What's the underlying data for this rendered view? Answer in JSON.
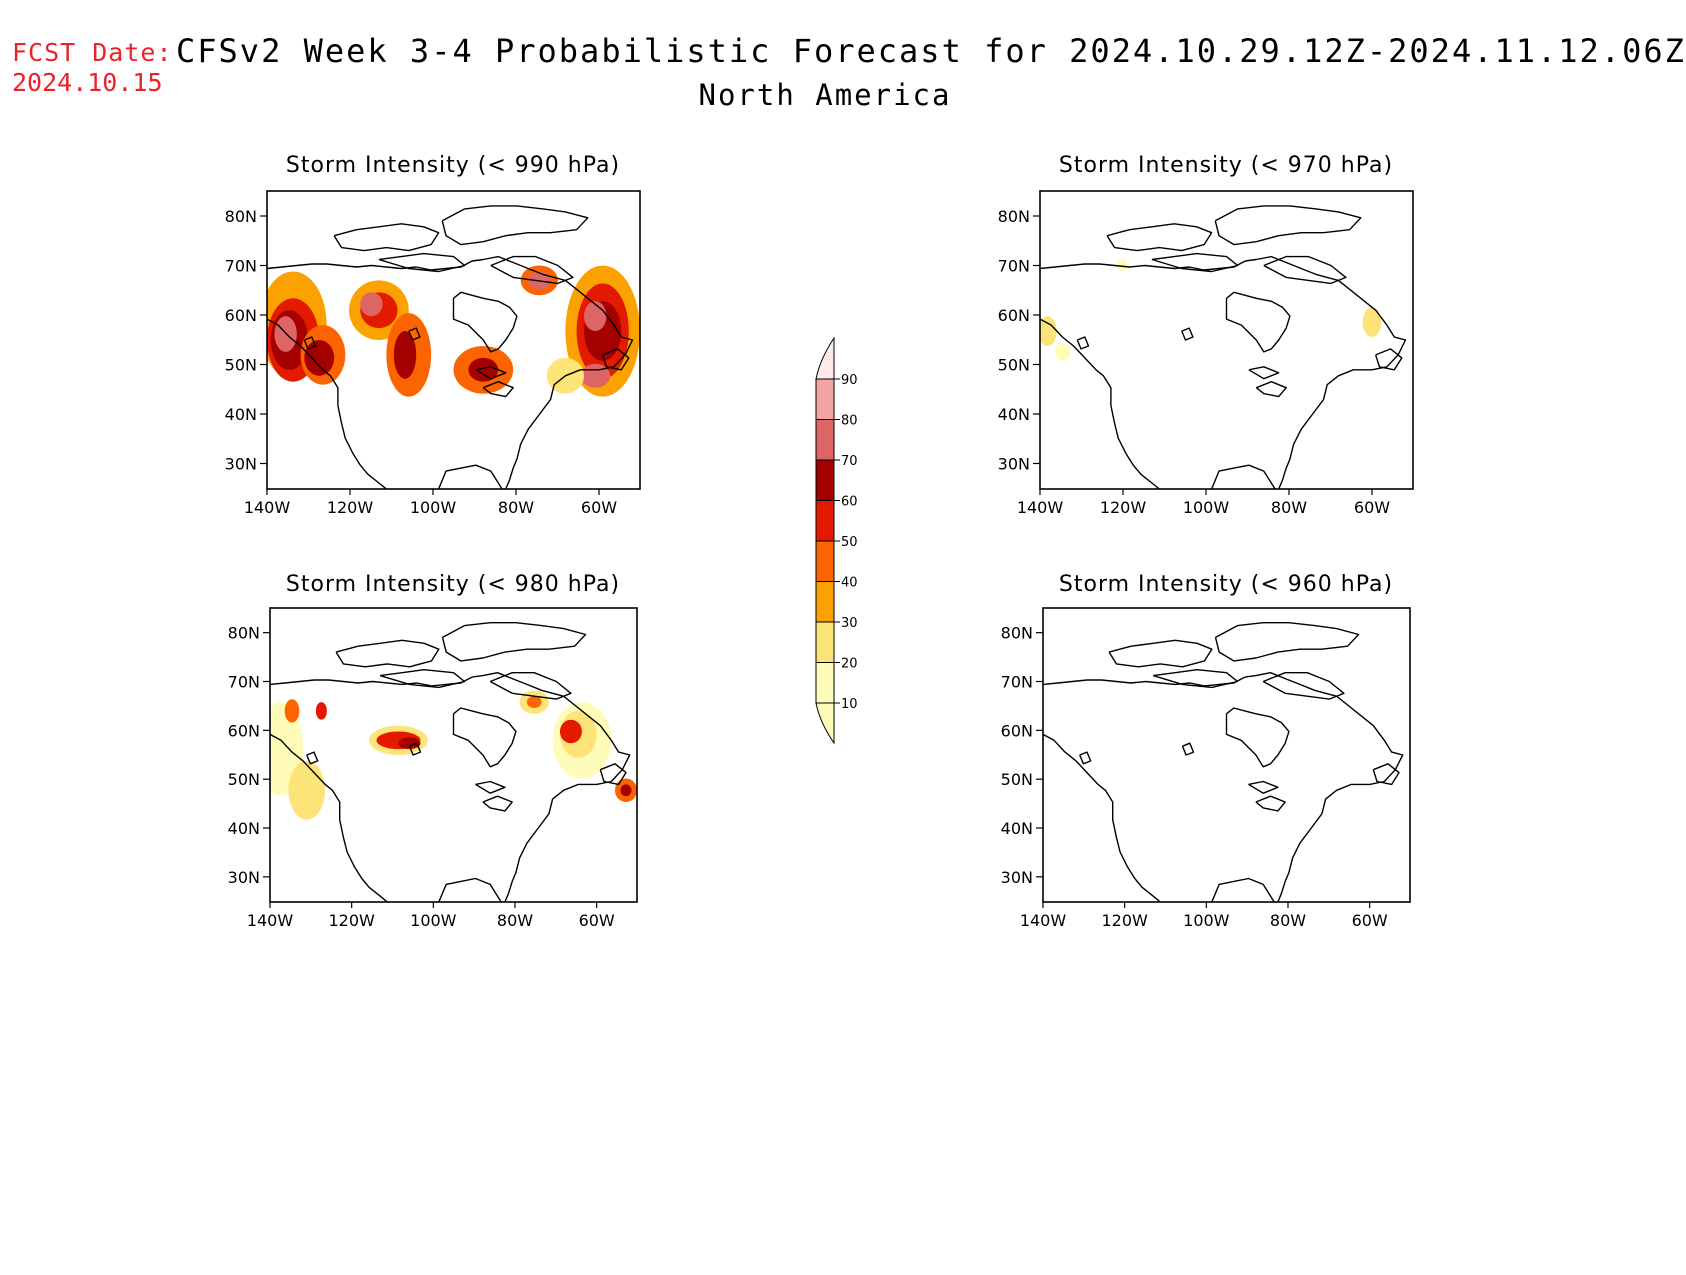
{
  "header": {
    "fcst_date_label": "FCST Date:",
    "fcst_date_value": "2024.10.15",
    "title": "CFSv2 Week 3-4 Probabilistic Forecast for 2024.10.29.12Z-2024.11.12.06Z",
    "region": "North America"
  },
  "panels": [
    {
      "title": "Storm Intensity (< 990 hPa)"
    },
    {
      "title": "Storm Intensity (< 970 hPa)"
    },
    {
      "title": "Storm Intensity (< 980 hPa)"
    },
    {
      "title": "Storm Intensity (< 960 hPa)"
    }
  ],
  "axes": {
    "lat_ticks": [
      "80N",
      "70N",
      "60N",
      "50N",
      "40N",
      "30N"
    ],
    "lon_ticks": [
      "140W",
      "120W",
      "100W",
      "80W",
      "60W"
    ]
  },
  "colorbar": {
    "levels": [
      "10",
      "20",
      "30",
      "40",
      "50",
      "60",
      "70",
      "80",
      "90"
    ],
    "colors": [
      "#fffbb8",
      "#fde479",
      "#fba201",
      "#fb6401",
      "#e31a00",
      "#a40000",
      "#dd6566",
      "#f3a5a5",
      "#ffe8e8"
    ]
  },
  "colors": {
    "header_red": "#e8232a",
    "coastline": "#000000"
  }
}
